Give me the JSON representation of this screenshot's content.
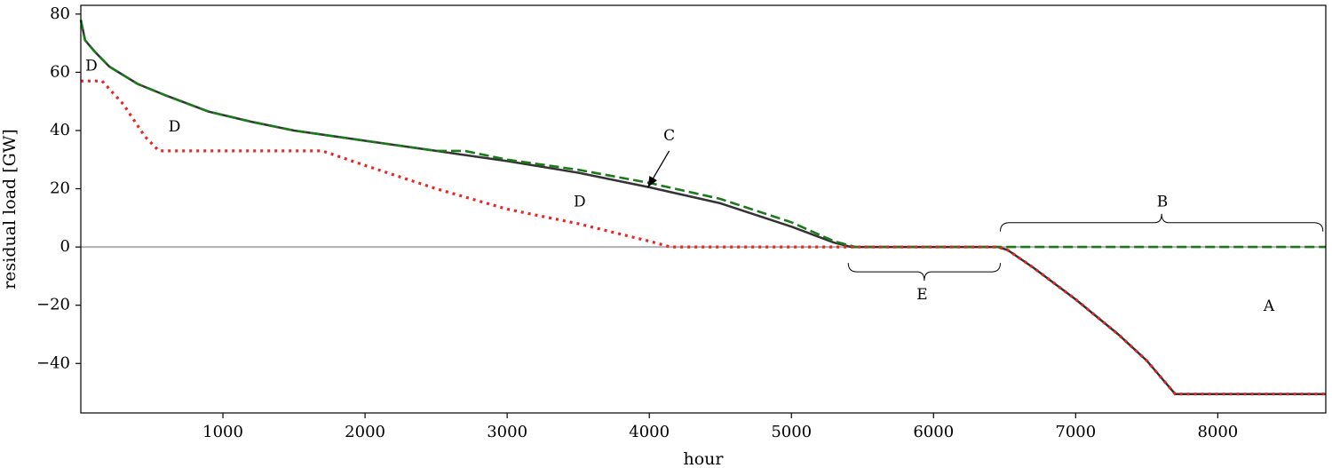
{
  "chart_data": {
    "type": "line",
    "xlabel": "hour",
    "ylabel": "residual load [GW]",
    "xlim": [
      0,
      8760
    ],
    "ylim": [
      -57,
      83
    ],
    "x_ticks": [
      1000,
      2000,
      3000,
      4000,
      5000,
      6000,
      7000,
      8000
    ],
    "y_ticks": [
      80,
      60,
      40,
      20,
      0,
      -20,
      -40
    ],
    "tick_labels": {
      "x": [
        "1000",
        "2000",
        "3000",
        "4000",
        "5000",
        "6000",
        "7000",
        "8000"
      ],
      "y": [
        "80",
        "60",
        "40",
        "20",
        "0",
        "−20",
        "−40"
      ]
    },
    "grid": false,
    "zero_line": true,
    "series": [
      {
        "style": "solid",
        "color": "#333333",
        "points": [
          [
            0,
            78
          ],
          [
            30,
            71
          ],
          [
            100,
            67
          ],
          [
            200,
            62
          ],
          [
            400,
            56
          ],
          [
            600,
            52
          ],
          [
            900,
            46.5
          ],
          [
            1200,
            43
          ],
          [
            1500,
            40
          ],
          [
            2000,
            36.5
          ],
          [
            2500,
            33
          ],
          [
            3000,
            29.5
          ],
          [
            3500,
            25.5
          ],
          [
            4000,
            20.5
          ],
          [
            4500,
            15
          ],
          [
            5000,
            7
          ],
          [
            5300,
            1.5
          ],
          [
            5420,
            0
          ],
          [
            6450,
            0
          ],
          [
            6520,
            -1
          ],
          [
            6700,
            -7
          ],
          [
            7000,
            -18
          ],
          [
            7300,
            -30
          ],
          [
            7500,
            -39
          ],
          [
            7700,
            -50.5
          ],
          [
            8760,
            -50.5
          ]
        ]
      },
      {
        "style": "dashed",
        "color": "#1a7a1a",
        "points": [
          [
            0,
            78
          ],
          [
            30,
            71
          ],
          [
            100,
            67
          ],
          [
            200,
            62
          ],
          [
            400,
            56
          ],
          [
            600,
            52
          ],
          [
            900,
            46.5
          ],
          [
            1200,
            43
          ],
          [
            1500,
            40
          ],
          [
            2000,
            36.5
          ],
          [
            2500,
            33
          ],
          [
            2700,
            33
          ],
          [
            3000,
            30
          ],
          [
            3500,
            26.5
          ],
          [
            4000,
            22
          ],
          [
            4500,
            16.5
          ],
          [
            5000,
            8.5
          ],
          [
            5300,
            2
          ],
          [
            5450,
            0
          ],
          [
            8760,
            0
          ]
        ]
      },
      {
        "style": "dotted",
        "color": "#ee2222",
        "points": [
          [
            0,
            57
          ],
          [
            150,
            57
          ],
          [
            300,
            49
          ],
          [
            450,
            38
          ],
          [
            550,
            33
          ],
          [
            1700,
            33
          ],
          [
            2000,
            28
          ],
          [
            2500,
            20
          ],
          [
            3000,
            13
          ],
          [
            3500,
            8
          ],
          [
            4000,
            2
          ],
          [
            4150,
            0
          ],
          [
            6450,
            0
          ],
          [
            6520,
            -1
          ],
          [
            6700,
            -7
          ],
          [
            7000,
            -18
          ],
          [
            7300,
            -30
          ],
          [
            7500,
            -39
          ],
          [
            7700,
            -50.5
          ],
          [
            8760,
            -50.5
          ]
        ]
      }
    ],
    "annotations": [
      {
        "text": "D",
        "x": 75,
        "y": 62
      },
      {
        "text": "D",
        "x": 660,
        "y": 41
      },
      {
        "text": "D",
        "x": 3510,
        "y": 15.3
      },
      {
        "text": "C",
        "x": 4140,
        "y": 38
      },
      {
        "text": "B",
        "x": 7610,
        "y": 15.3
      },
      {
        "text": "E",
        "x": 5920,
        "y": -16.6
      },
      {
        "text": "A",
        "x": 8360,
        "y": -20.6
      }
    ],
    "arrow": {
      "from": [
        4140,
        33
      ],
      "to": [
        3990,
        20.5
      ]
    },
    "braces": [
      {
        "label": "B",
        "x0": 6470,
        "x1": 8740,
        "y_base": 5.3,
        "y_tip": 5.3,
        "direction": "up"
      },
      {
        "label": "E",
        "x0": 5400,
        "x1": 6470,
        "y_base": -5.5,
        "direction": "down"
      }
    ]
  }
}
